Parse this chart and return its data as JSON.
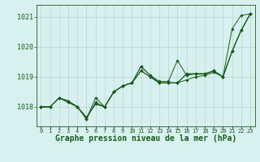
{
  "title": "Graphe pression niveau de la mer (hPa)",
  "background_color": "#d8f0f0",
  "grid_color": "#b0d8cc",
  "line_color": "#1a5c1a",
  "x_values": [
    0,
    1,
    2,
    3,
    4,
    5,
    6,
    7,
    8,
    9,
    10,
    11,
    12,
    13,
    14,
    15,
    16,
    17,
    18,
    19,
    20,
    21,
    22,
    23
  ],
  "series": [
    [
      1018.0,
      1018.0,
      1018.3,
      1018.2,
      1018.0,
      1017.6,
      1018.3,
      1018.0,
      1018.5,
      1018.7,
      1018.8,
      1019.35,
      1019.05,
      1018.85,
      1018.85,
      1019.55,
      1019.05,
      1019.1,
      1019.1,
      1019.2,
      1019.0,
      1020.6,
      1021.05,
      1021.1
    ],
    [
      1018.0,
      1018.0,
      1018.3,
      1018.2,
      1018.0,
      1017.6,
      1018.15,
      1018.0,
      1018.5,
      1018.7,
      1018.8,
      1019.35,
      1019.05,
      1018.8,
      1018.8,
      1018.8,
      1018.9,
      1019.0,
      1019.05,
      1019.15,
      1019.0,
      1019.85,
      1020.55,
      1021.1
    ],
    [
      1018.0,
      1018.0,
      1018.3,
      1018.15,
      1018.0,
      1017.65,
      1018.1,
      1018.0,
      1018.5,
      1018.7,
      1018.8,
      1019.2,
      1019.0,
      1018.8,
      1018.8,
      1018.8,
      1019.1,
      1019.1,
      1019.1,
      1019.2,
      1019.0,
      1019.85,
      1020.55,
      1021.1
    ],
    [
      1018.0,
      1018.0,
      1018.3,
      1018.15,
      1018.0,
      1017.65,
      1018.1,
      1018.0,
      1018.5,
      1018.7,
      1018.8,
      1019.2,
      1019.0,
      1018.8,
      1018.8,
      1018.8,
      1019.1,
      1019.1,
      1019.1,
      1019.2,
      1019.0,
      1019.85,
      1020.55,
      1021.1
    ]
  ],
  "yticks": [
    1018,
    1019,
    1020,
    1021
  ],
  "ylim": [
    1017.35,
    1021.4
  ],
  "xlim": [
    -0.5,
    23.5
  ],
  "title_fontsize": 7,
  "tick_fontsize": 6,
  "xtick_fontsize": 5
}
